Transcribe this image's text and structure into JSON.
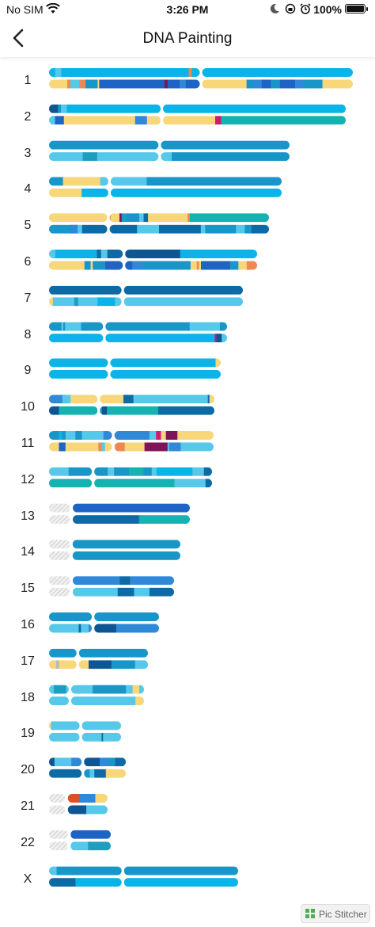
{
  "status": {
    "carrier": "No SIM",
    "time": "3:26 PM",
    "battery": "100%"
  },
  "nav": {
    "title": "DNA Painting"
  },
  "watermark": {
    "text": "Pic Stitcher"
  },
  "colors": {
    "A": "#0ab4e8",
    "B": "#56c8ea",
    "C": "#1996c8",
    "D": "#0e6aa4",
    "E": "#0f5591",
    "F": "#1e64c4",
    "G": "#2f88d8",
    "H": "#f7d77a",
    "I": "#14b2b0",
    "J": "#ee8850",
    "K": "#7f1459",
    "L": "#d01b6e",
    "M": "#e0501e",
    "N": "#b9b9b9",
    "O": "#1e9dc0"
  },
  "chromosomes": [
    {
      "label": "1",
      "len": 384,
      "cen": 0.5,
      "pter": 0,
      "t": "A:0-2,B:2-4,A:4-46,J:46-47,A:47-100",
      "b": "H:0-6,J:6-7,B:7-10,J:10-12,C:12-16,H:16-16.5,F:16.5-38,K:38-39,F:39-43,G:43-45,F:45-50,H:50-65,C:65-67,G:67-70,F:70-73,C:73-76,F:76-81,G:81-84,C:84-90,H:90-100"
    },
    {
      "label": "2",
      "len": 375,
      "cen": 0.38,
      "pter": 0,
      "t": "E:0-3,C:3-4,B:4-6,A:6-100",
      "b": "B:0-2,F:2-5,H:5-29,G:29-33,H:33-56,L:56-58,I:58-100"
    },
    {
      "label": "3",
      "len": 304,
      "cen": 0.46,
      "pter": 0,
      "t": "C:0-100",
      "b": "B:0-14,O:14-20,B:20-46,B:46-51,C:51-100"
    },
    {
      "label": "4",
      "len": 294,
      "cen": 0.26,
      "pter": 0,
      "t": "C:0-6,H:6-22,B:22-25,B:25-42,C:42-100",
      "b": "H:0-14,A:14-26,A:26-100"
    },
    {
      "label": "5",
      "len": 278,
      "cen": 0.27,
      "pter": 0,
      "t": "H:0-27,J:27-28,H:28-32,K:32-33,O:33-35,C:35-41,B:41-43,D:43-45,H:45-48,H:48-63,J:63-64,I:64-100",
      "b": "C:0-10,E:10-13,G:10-13,B:13-15,D:15-27,D:27-40,B:40-50,D:50-69,B:69-71,C:71-85,B:85-89,C:89-92,D:92-100"
    },
    {
      "label": "6",
      "len": 263,
      "cen": 0.36,
      "pter": 0,
      "t": "B:0-3,A:3-23,D:23-25,B:25-28,D:28-36,E:36-63,A:63-100",
      "b": "H:0-17,C:17-20,H:20-21,C:21-27,F:27-30,G:30-40,F:30-40,G:40-45,C:45-68,H:68-71,J:71-72,H:72-73,F:73-87,C:87-91,H:91-95,J:95-100"
    },
    {
      "label": "7",
      "len": 245,
      "cen": 0.38,
      "pter": 0,
      "t": "D:0-100",
      "b": "H:0-2,B:2-13,O:13-15,B:15-25,A:25-34,B:34-38,B:38-100"
    },
    {
      "label": "8",
      "len": 225,
      "cen": 0.31,
      "pter": 0,
      "t": "C:0-7,B:7-8,C:8-9,B:9-18,C:18-31,C:31-79,B:79-96,C:96-100",
      "b": "A:0-31,A:31-93,L:93-94,E:94-97,B:97-100"
    },
    {
      "label": "9",
      "len": 217,
      "cen": 0.35,
      "pter": 0,
      "t": "A:0-35,A:35-97,H:97-100",
      "b": "A:0-35,A:35-100"
    },
    {
      "label": "10",
      "len": 209,
      "cen": 0.3,
      "pter": 0,
      "t": "G:0-8,E:8-10,B:8-13,H:13-30,H:30-45,E:45-46,D:45-51,B:51-96,D:96-97,H:97-100",
      "b": "E:0-6,I:6-29,C:29-32,E:32-35,I:35-66,D:66-70,D:70-100"
    },
    {
      "label": "11",
      "len": 208,
      "cen": 0.39,
      "pter": 0,
      "t": "C:0-6,A:6-8,C:8-10,B:10-16,C:16-20,B:20-33,G:33-39,G:39-61,B:61-65,L:65-68,H:68-71,K:71-78,H:78-82,H:82-100",
      "b": "H:0-6,F:6-10,H:10-30,J:30-32,B:32-34,H:34-40,J:40-46,H:46-58,K:58-72,B:72-73,G:73-80,B:80-100"
    },
    {
      "label": "12",
      "len": 206,
      "cen": 0.27,
      "pter": 0,
      "t": "B:0-12,C:12-27,C:27-36,B:36-40,D:40-41,C:40-49,I:49-58,C:58-63,B:63-66,A:66-88,B:88-95,D:95-100",
      "b": "I:0-27,I:27-77,B:77-96,D:96-100"
    },
    {
      "label": "13",
      "len": 178,
      "cen": 0.16,
      "pter": 0.16,
      "t": "F:0-100",
      "b": "D:0-57,I:57-100"
    },
    {
      "label": "14",
      "len": 166,
      "cen": 0.17,
      "pter": 0.17,
      "t": "C:0-100",
      "b": "C:0-100"
    },
    {
      "label": "15",
      "len": 158,
      "cen": 0.18,
      "pter": 0.18,
      "t": "G:0-47,D:47-57,G:57-100",
      "b": "B:0-45,D:45-61,B:61-76,D:76-100"
    },
    {
      "label": "16",
      "len": 139,
      "cen": 0.4,
      "pter": 0,
      "t": "C:0-40,C:40-100",
      "b": "B:0-27,D:27-29,B:29-36,G:36-39,E:39-61,G:61-100"
    },
    {
      "label": "17",
      "len": 125,
      "cen": 0.29,
      "pter": 0,
      "t": "C:0-29,C:29-100",
      "b": "H:0-7,N:7-10,H:10-29,H:29-40,E:40-63,C:63-87,B:87-100"
    },
    {
      "label": "18",
      "len": 120,
      "cen": 0.22,
      "pter": 0,
      "t": "B:0-5,O:5-18,B:18-22,B:22-46,C:46-81,B:81-88,H:88-95,B:95-100",
      "b": "B:0-22,B:22-91,H:91-100"
    },
    {
      "label": "19",
      "len": 91,
      "cen": 0.44,
      "pter": 0,
      "t": "H:0-3,E:3-6,B:3-44,B:44-100",
      "b": "B:0-44,B:44-73,D:73-75,B:75-100"
    },
    {
      "label": "20",
      "len": 97,
      "cen": 0.44,
      "pter": 0,
      "t": "E:0-7,B:7-29,G:29-44,E:44-66,G:66-77,C:77-86,D:86-100",
      "b": "D:0-44,C:44-53,B:53-59,D:59-74,H:74-100"
    },
    {
      "label": "21",
      "len": 74,
      "cen": 0.3,
      "pter": 0.3,
      "t": "M:0-30,G:30-70,H:70-100",
      "b": "E:0-48,B:48-100"
    },
    {
      "label": "22",
      "len": 78,
      "cen": 0.33,
      "pter": 0.33,
      "t": "F:0-100",
      "b": "B:0-45,O:45-100"
    },
    {
      "label": "X",
      "len": 239,
      "cen": 0.39,
      "pter": 0.02,
      "t": "B:0-4,C:4-39,C:39-100",
      "b": "D:0-14,A:14-39,A:39-100"
    }
  ]
}
